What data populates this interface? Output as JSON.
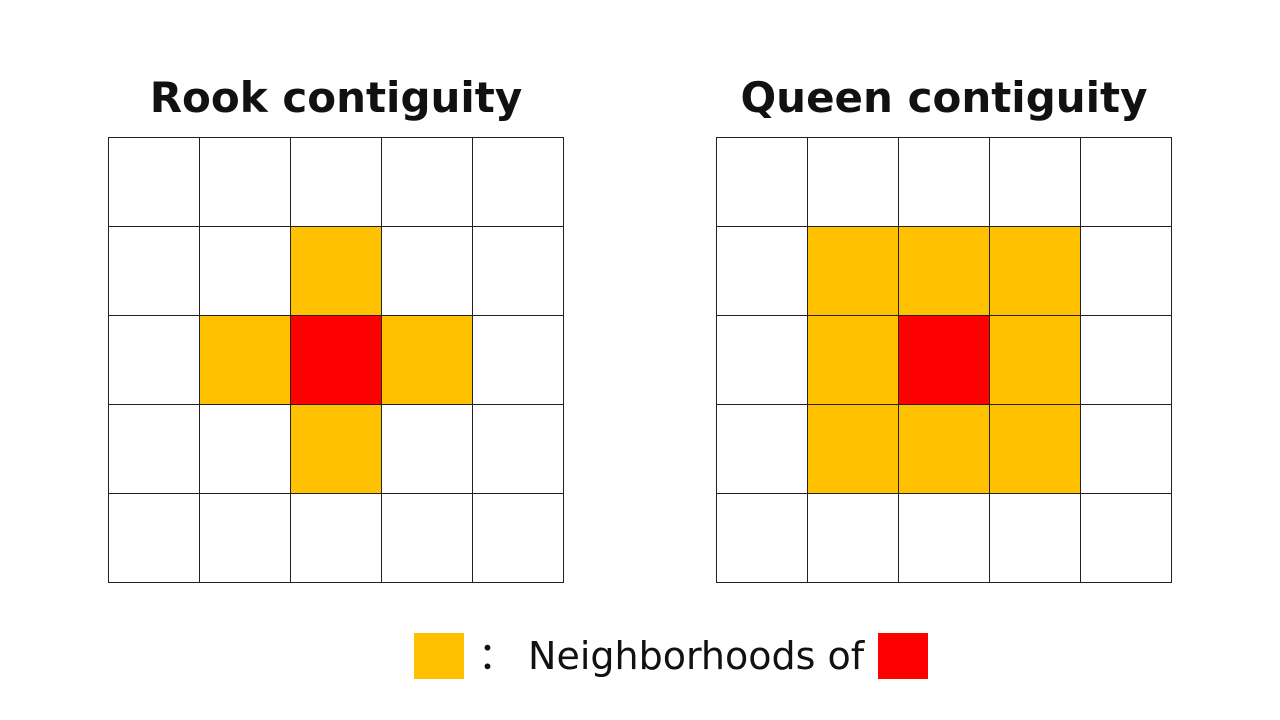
{
  "colors": {
    "neighbor": "#FFC000",
    "focus": "#FF0000",
    "empty": "#FFFFFF"
  },
  "panels": [
    {
      "title": "Rook contiguity",
      "cells": [
        [
          "empty",
          "empty",
          "empty",
          "empty",
          "empty"
        ],
        [
          "empty",
          "empty",
          "neighbor",
          "empty",
          "empty"
        ],
        [
          "empty",
          "neighbor",
          "focus",
          "neighbor",
          "empty"
        ],
        [
          "empty",
          "empty",
          "neighbor",
          "empty",
          "empty"
        ],
        [
          "empty",
          "empty",
          "empty",
          "empty",
          "empty"
        ]
      ]
    },
    {
      "title": "Queen contiguity",
      "cells": [
        [
          "empty",
          "empty",
          "empty",
          "empty",
          "empty"
        ],
        [
          "empty",
          "neighbor",
          "neighbor",
          "neighbor",
          "empty"
        ],
        [
          "empty",
          "neighbor",
          "focus",
          "neighbor",
          "empty"
        ],
        [
          "empty",
          "neighbor",
          "neighbor",
          "neighbor",
          "empty"
        ],
        [
          "empty",
          "empty",
          "empty",
          "empty",
          "empty"
        ]
      ]
    }
  ],
  "legend": {
    "separator": "：",
    "text": "Neighborhoods of"
  }
}
